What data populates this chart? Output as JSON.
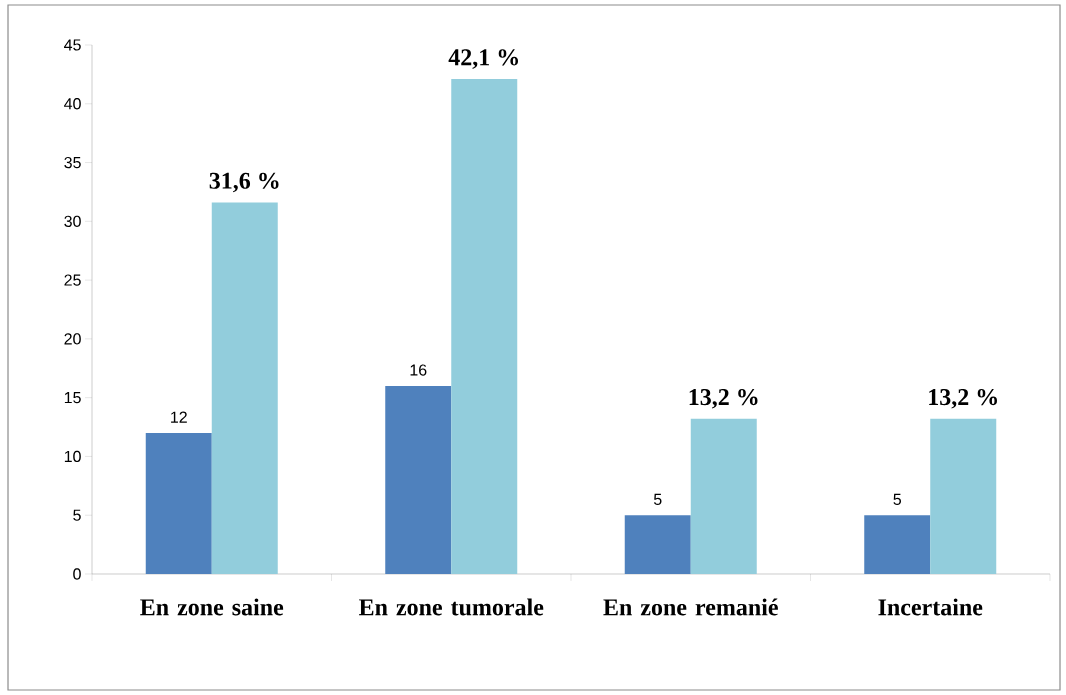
{
  "chart_data": {
    "type": "bar",
    "categories": [
      "En zone saine",
      "En zone tumorale",
      "En zone remanié",
      "Incertaine"
    ],
    "series": [
      {
        "color": "#4f81bd",
        "values": [
          12,
          16,
          5,
          5
        ],
        "value_labels": [
          "12",
          "16",
          "5",
          "5"
        ]
      },
      {
        "color": "#92cddc",
        "values": [
          31.6,
          42.1,
          13.2,
          13.2
        ],
        "value_labels": [
          "31,6 %",
          "42,1 %",
          "13,2 %",
          "13,2 %"
        ]
      }
    ],
    "ylim": [
      0,
      45
    ],
    "yticks": [
      0,
      5,
      10,
      15,
      20,
      25,
      30,
      35,
      40,
      45
    ],
    "grid": false
  }
}
